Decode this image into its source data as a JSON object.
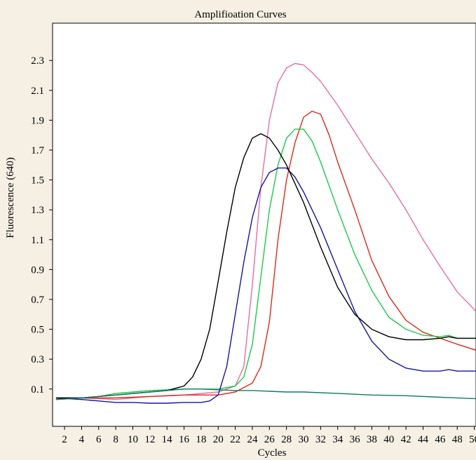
{
  "chart_data": {
    "type": "line",
    "title": "Amplifioation Curves",
    "xlabel": "Cycles",
    "ylabel": "Fluorescence (640)",
    "xlim": [
      0.6,
      50.2
    ],
    "ylim": [
      -0.15,
      2.55
    ],
    "x_ticks": [
      2,
      4,
      6,
      8,
      10,
      12,
      14,
      16,
      18,
      20,
      22,
      24,
      26,
      28,
      30,
      32,
      34,
      36,
      38,
      40,
      42,
      44,
      46,
      48,
      50
    ],
    "y_ticks": [
      0.1,
      0.3,
      0.5,
      0.7,
      0.9,
      1.1,
      1.3,
      1.5,
      1.7,
      1.9,
      2.1,
      2.3
    ],
    "y_tick_labels": [
      "0.1",
      "0.3",
      "0.5",
      "0.7",
      "0.9",
      "1.1",
      "1.3",
      "1.5",
      "1.7",
      "1.9",
      "2.1",
      "2.3"
    ],
    "grid": false,
    "series": [
      {
        "color": "#e86ea0",
        "points": [
          [
            1,
            0.03
          ],
          [
            4,
            0.04
          ],
          [
            8,
            0.03
          ],
          [
            12,
            0.05
          ],
          [
            16,
            0.06
          ],
          [
            20,
            0.08
          ],
          [
            22,
            0.12
          ],
          [
            23,
            0.25
          ],
          [
            24,
            0.8
          ],
          [
            25,
            1.45
          ],
          [
            26,
            1.9
          ],
          [
            27,
            2.15
          ],
          [
            28,
            2.25
          ],
          [
            29,
            2.28
          ],
          [
            30,
            2.27
          ],
          [
            31,
            2.22
          ],
          [
            32,
            2.16
          ],
          [
            34,
            2.0
          ],
          [
            36,
            1.82
          ],
          [
            38,
            1.64
          ],
          [
            40,
            1.48
          ],
          [
            42,
            1.3
          ],
          [
            44,
            1.1
          ],
          [
            46,
            0.92
          ],
          [
            48,
            0.75
          ],
          [
            50.2,
            0.62
          ]
        ]
      },
      {
        "color": "#dd2a1b",
        "points": [
          [
            1,
            0.04
          ],
          [
            4,
            0.04
          ],
          [
            8,
            0.04
          ],
          [
            12,
            0.05
          ],
          [
            16,
            0.06
          ],
          [
            20,
            0.06
          ],
          [
            22,
            0.08
          ],
          [
            24,
            0.14
          ],
          [
            25,
            0.25
          ],
          [
            26,
            0.55
          ],
          [
            27,
            1.1
          ],
          [
            28,
            1.5
          ],
          [
            29,
            1.75
          ],
          [
            30,
            1.92
          ],
          [
            31,
            1.96
          ],
          [
            32,
            1.94
          ],
          [
            33,
            1.8
          ],
          [
            34,
            1.62
          ],
          [
            36,
            1.3
          ],
          [
            38,
            0.96
          ],
          [
            40,
            0.72
          ],
          [
            42,
            0.56
          ],
          [
            44,
            0.48
          ],
          [
            46,
            0.44
          ],
          [
            48,
            0.4
          ],
          [
            50.2,
            0.36
          ]
        ]
      },
      {
        "color": "#1dc84a",
        "points": [
          [
            1,
            0.03
          ],
          [
            4,
            0.04
          ],
          [
            6,
            0.05
          ],
          [
            8,
            0.07
          ],
          [
            10,
            0.08
          ],
          [
            12,
            0.09
          ],
          [
            16,
            0.1
          ],
          [
            18,
            0.1
          ],
          [
            20,
            0.1
          ],
          [
            22,
            0.12
          ],
          [
            23,
            0.18
          ],
          [
            24,
            0.4
          ],
          [
            25,
            0.85
          ],
          [
            26,
            1.3
          ],
          [
            27,
            1.6
          ],
          [
            28,
            1.78
          ],
          [
            29,
            1.84
          ],
          [
            30,
            1.84
          ],
          [
            31,
            1.76
          ],
          [
            32,
            1.62
          ],
          [
            34,
            1.3
          ],
          [
            36,
            1.0
          ],
          [
            38,
            0.76
          ],
          [
            40,
            0.58
          ],
          [
            42,
            0.5
          ],
          [
            44,
            0.46
          ],
          [
            46,
            0.45
          ],
          [
            47,
            0.46
          ],
          [
            48,
            0.44
          ],
          [
            50.2,
            0.44
          ]
        ]
      },
      {
        "color": "#1515a8",
        "points": [
          [
            1,
            0.04
          ],
          [
            4,
            0.03
          ],
          [
            6,
            0.02
          ],
          [
            8,
            0.01
          ],
          [
            10,
            0.01
          ],
          [
            12,
            0.005
          ],
          [
            14,
            0.005
          ],
          [
            16,
            0.01
          ],
          [
            18,
            0.01
          ],
          [
            19,
            0.02
          ],
          [
            20,
            0.06
          ],
          [
            21,
            0.25
          ],
          [
            22,
            0.6
          ],
          [
            23,
            0.95
          ],
          [
            24,
            1.25
          ],
          [
            25,
            1.45
          ],
          [
            26,
            1.55
          ],
          [
            27,
            1.58
          ],
          [
            28,
            1.58
          ],
          [
            29,
            1.52
          ],
          [
            30,
            1.42
          ],
          [
            32,
            1.18
          ],
          [
            34,
            0.9
          ],
          [
            36,
            0.62
          ],
          [
            38,
            0.42
          ],
          [
            40,
            0.3
          ],
          [
            42,
            0.24
          ],
          [
            44,
            0.22
          ],
          [
            46,
            0.22
          ],
          [
            47,
            0.23
          ],
          [
            48,
            0.22
          ],
          [
            50.2,
            0.22
          ]
        ]
      },
      {
        "color": "#000000",
        "points": [
          [
            1,
            0.04
          ],
          [
            4,
            0.04
          ],
          [
            8,
            0.06
          ],
          [
            12,
            0.08
          ],
          [
            14,
            0.09
          ],
          [
            16,
            0.12
          ],
          [
            17,
            0.18
          ],
          [
            18,
            0.3
          ],
          [
            19,
            0.5
          ],
          [
            20,
            0.82
          ],
          [
            21,
            1.15
          ],
          [
            22,
            1.45
          ],
          [
            23,
            1.65
          ],
          [
            24,
            1.78
          ],
          [
            25,
            1.81
          ],
          [
            26,
            1.78
          ],
          [
            27,
            1.7
          ],
          [
            28,
            1.6
          ],
          [
            30,
            1.35
          ],
          [
            32,
            1.05
          ],
          [
            34,
            0.78
          ],
          [
            36,
            0.6
          ],
          [
            38,
            0.5
          ],
          [
            40,
            0.45
          ],
          [
            42,
            0.43
          ],
          [
            44,
            0.43
          ],
          [
            46,
            0.44
          ],
          [
            47,
            0.45
          ],
          [
            48,
            0.44
          ],
          [
            50.2,
            0.44
          ]
        ]
      },
      {
        "color": "#0f7a63",
        "points": [
          [
            1,
            0.03
          ],
          [
            4,
            0.04
          ],
          [
            6,
            0.05
          ],
          [
            8,
            0.06
          ],
          [
            10,
            0.07
          ],
          [
            12,
            0.08
          ],
          [
            14,
            0.09
          ],
          [
            16,
            0.1
          ],
          [
            18,
            0.1
          ],
          [
            20,
            0.095
          ],
          [
            22,
            0.09
          ],
          [
            24,
            0.09
          ],
          [
            26,
            0.085
          ],
          [
            28,
            0.08
          ],
          [
            30,
            0.08
          ],
          [
            34,
            0.07
          ],
          [
            38,
            0.06
          ],
          [
            42,
            0.055
          ],
          [
            46,
            0.045
          ],
          [
            50.2,
            0.035
          ]
        ]
      }
    ]
  }
}
